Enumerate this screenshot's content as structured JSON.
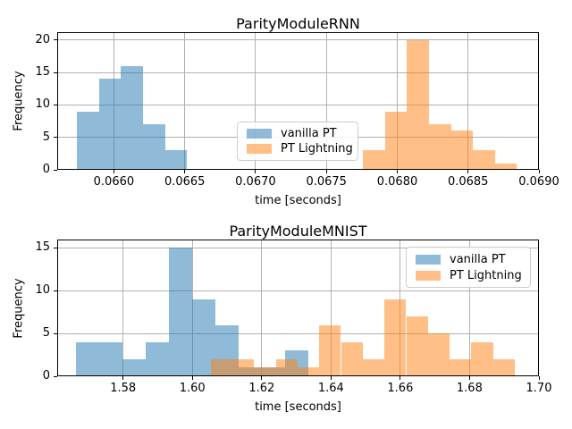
{
  "figure": {
    "background": "#ffffff"
  },
  "colors": {
    "grid": "#b0b0b0",
    "spine": "#000000",
    "text": "#000000",
    "legend_border": "#cccccc",
    "blue": "#1f77b4",
    "orange": "#ff7f0e"
  },
  "chart_data": [
    {
      "type": "histogram",
      "title": "ParityModuleRNN",
      "xlabel": "time [seconds]",
      "ylabel": "Frequency",
      "xlim": [
        0.0656,
        0.069
      ],
      "ylim": [
        0,
        21.2
      ],
      "grid": true,
      "legend_position": "center",
      "xticks": [
        {
          "v": 0.066,
          "label": "0.0660"
        },
        {
          "v": 0.0665,
          "label": "0.0665"
        },
        {
          "v": 0.067,
          "label": "0.0670"
        },
        {
          "v": 0.0675,
          "label": "0.0675"
        },
        {
          "v": 0.068,
          "label": "0.0680"
        },
        {
          "v": 0.0685,
          "label": "0.0685"
        },
        {
          "v": 0.069,
          "label": "0.0690"
        }
      ],
      "yticks": [
        {
          "v": 0,
          "label": "0"
        },
        {
          "v": 5,
          "label": "5"
        },
        {
          "v": 10,
          "label": "10"
        },
        {
          "v": 15,
          "label": "15"
        },
        {
          "v": 20,
          "label": "20"
        }
      ],
      "series": [
        {
          "name": "vanilla PT",
          "color": "#1f77b4",
          "alpha": 0.5,
          "bin_edges": [
            0.065738,
            0.065894,
            0.06605,
            0.066206,
            0.066362,
            0.066518
          ],
          "counts": [
            9,
            14,
            16,
            7,
            3
          ]
        },
        {
          "name": "PT Lightning",
          "color": "#ff7f0e",
          "alpha": 0.5,
          "bin_edges": [
            0.067759,
            0.067914,
            0.068069,
            0.068224,
            0.068379,
            0.068534,
            0.068689,
            0.068844
          ],
          "counts": [
            3,
            9,
            20,
            7,
            6,
            3,
            1
          ]
        }
      ]
    },
    {
      "type": "histogram",
      "title": "ParityModuleMNIST",
      "xlabel": "time [seconds]",
      "ylabel": "Frequency",
      "xlim": [
        1.561,
        1.7
      ],
      "ylim": [
        0,
        15.97
      ],
      "grid": true,
      "legend_position": "upper right",
      "xticks": [
        {
          "v": 1.58,
          "label": "1.58"
        },
        {
          "v": 1.6,
          "label": "1.60"
        },
        {
          "v": 1.62,
          "label": "1.62"
        },
        {
          "v": 1.64,
          "label": "1.64"
        },
        {
          "v": 1.66,
          "label": "1.66"
        },
        {
          "v": 1.68,
          "label": "1.68"
        },
        {
          "v": 1.7,
          "label": "1.70"
        }
      ],
      "yticks": [
        {
          "v": 0,
          "label": "0"
        },
        {
          "v": 5,
          "label": "5"
        },
        {
          "v": 10,
          "label": "10"
        },
        {
          "v": 15,
          "label": "15"
        }
      ],
      "series": [
        {
          "name": "vanilla PT",
          "color": "#1f77b4",
          "alpha": 0.5,
          "bin_edges": [
            1.5664,
            1.5731,
            1.5798,
            1.5865,
            1.5932,
            1.5999,
            1.6066,
            1.6133,
            1.62,
            1.6267,
            1.6334
          ],
          "counts": [
            4,
            4,
            2,
            4,
            15,
            9,
            6,
            1,
            1,
            3
          ]
        },
        {
          "name": "PT Lightning",
          "color": "#ff7f0e",
          "alpha": 0.5,
          "bin_edges": [
            1.60527,
            1.61154,
            1.61781,
            1.62408,
            1.63035,
            1.63662,
            1.64289,
            1.64916,
            1.65543,
            1.6617,
            1.66797,
            1.67424,
            1.68051,
            1.68678,
            1.69305
          ],
          "counts": [
            2,
            2,
            1,
            2,
            1,
            6,
            4,
            2,
            9,
            7,
            5,
            2,
            4,
            2
          ]
        }
      ]
    }
  ]
}
